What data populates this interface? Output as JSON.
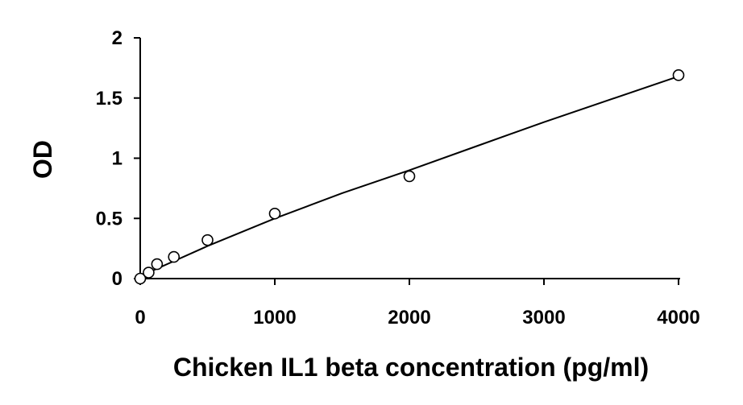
{
  "chart_data": {
    "type": "scatter",
    "title": "",
    "xlabel": "Chicken IL1 beta concentration (pg/ml)",
    "ylabel": "OD",
    "xlim": [
      0,
      4000
    ],
    "ylim": [
      0,
      2
    ],
    "x_ticks": [
      "0",
      "1000",
      "2000",
      "3000",
      "4000"
    ],
    "y_ticks": [
      "0",
      "0.5",
      "1",
      "1.5",
      "2"
    ],
    "grid": false,
    "legend": "none",
    "series": [
      {
        "marker": "open-circle",
        "x": [
          0,
          62.5,
          125,
          250,
          500,
          1000,
          2000,
          4000
        ],
        "y": [
          0.0,
          0.05,
          0.12,
          0.18,
          0.32,
          0.54,
          0.85,
          1.69
        ]
      }
    ],
    "trendline": {
      "type": "polynomial",
      "x": [
        0,
        500,
        1000,
        1500,
        2000,
        2500,
        3000,
        3500,
        4000
      ],
      "y": [
        0.02,
        0.27,
        0.5,
        0.71,
        0.9,
        1.1,
        1.3,
        1.49,
        1.68
      ]
    }
  }
}
